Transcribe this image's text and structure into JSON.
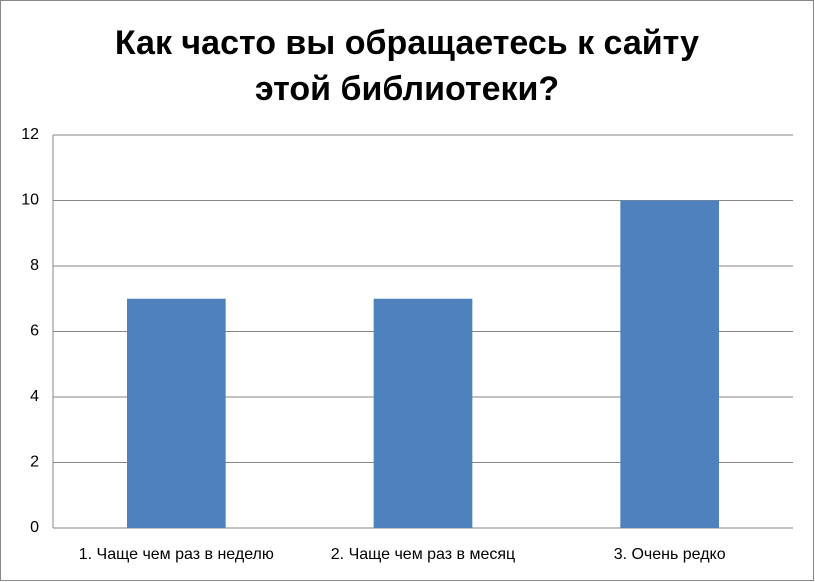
{
  "chart_data": {
    "type": "bar",
    "title": "Как часто вы обращаетесь к сайту этой библиотеки?",
    "categories": [
      "1. Чаще чем раз в неделю",
      "2. Чаще чем раз в месяц",
      "3. Очень редко"
    ],
    "values": [
      7,
      7,
      10
    ],
    "color": "#4f81bd",
    "ylim": [
      0,
      12
    ],
    "yticks": [
      0,
      2,
      4,
      6,
      8,
      10,
      12
    ],
    "grid": true
  }
}
